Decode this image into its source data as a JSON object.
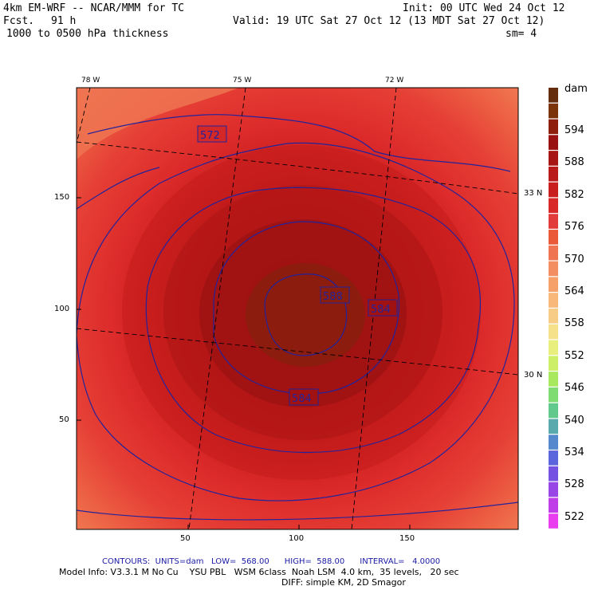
{
  "header": {
    "model": "4km EM-WRF -- NCAR/MMM for TC",
    "init": "Init: 00 UTC Wed 24 Oct 12",
    "fcst_label": "Fcst.",
    "fcst_value": "91 h",
    "valid": "Valid: 19 UTC Sat 27 Oct 12 (13 MDT Sat 27 Oct 12)",
    "field": "1000 to 0500 hPa thickness",
    "smooth": "sm= 4"
  },
  "map": {
    "lon_labels": [
      "78 W",
      "75 W",
      "72 W"
    ],
    "lat_labels": [
      "33 N",
      "30 N"
    ],
    "x_ticks": [
      "50",
      "100",
      "150"
    ],
    "y_ticks": [
      "150",
      "100",
      "50"
    ],
    "contour_labels": [
      "572",
      "588",
      "584",
      "584"
    ]
  },
  "colorbar": {
    "units": "dam",
    "levels": [
      "594",
      "588",
      "582",
      "576",
      "570",
      "564",
      "558",
      "552",
      "546",
      "540",
      "534",
      "528",
      "522"
    ],
    "colors": [
      "#642d0e",
      "#7b3309",
      "#8e1f0c",
      "#9a1111",
      "#a81515",
      "#b91a1a",
      "#c81e1e",
      "#d82828",
      "#e23b3b",
      "#ea5a38",
      "#ef7451",
      "#f38e62",
      "#f6a06a",
      "#f7b87a",
      "#f6cc86",
      "#f4e18a",
      "#e8ef7c",
      "#cdee67",
      "#a8e85e",
      "#7fdc73",
      "#62c98d",
      "#5aa9ad",
      "#5588cc",
      "#5c66dc",
      "#7552e2",
      "#9846e6",
      "#c03ee8",
      "#e83ef0"
    ]
  },
  "footer": {
    "contours": "CONTOURS:  UNITS=dam   LOW=  568.00      HIGH=  588.00      INTERVAL=   4.0000",
    "model_info": "Model Info: V3.3.1 M No Cu    YSU PBL   WSM 6class  Noah LSM  4.0 km,  35 levels,   20 sec",
    "diff": "DIFF: simple KM, 2D Smagor"
  }
}
